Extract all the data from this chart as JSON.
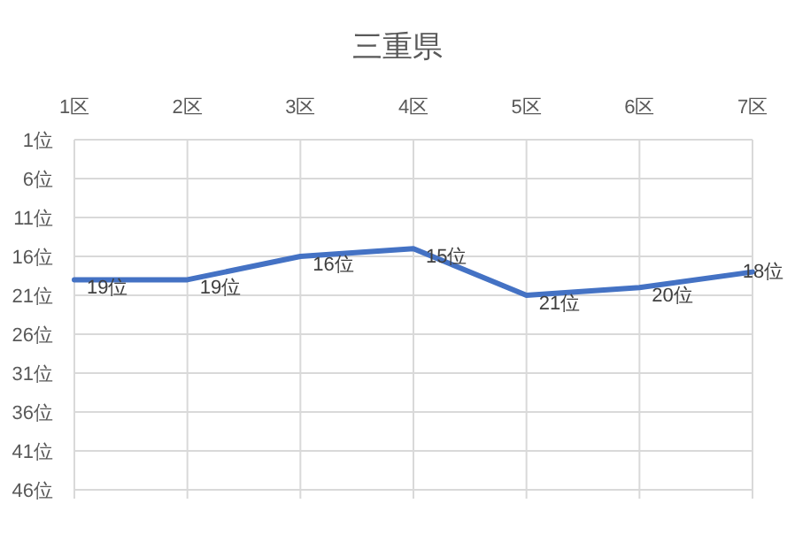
{
  "chart_data": {
    "type": "line",
    "title": "三重県",
    "categories": [
      "1区",
      "2区",
      "3区",
      "4区",
      "5区",
      "6区",
      "7区"
    ],
    "series": [
      {
        "color": "#4472c4",
        "values": [
          19,
          19,
          16,
          15,
          21,
          20,
          18
        ],
        "value_labels": [
          "19位",
          "19位",
          "16位",
          "15位",
          "21位",
          "20位",
          "18位"
        ]
      }
    ],
    "ylim": [
      46,
      1
    ],
    "yticks": [
      {
        "value": 1,
        "label": "1位"
      },
      {
        "value": 6,
        "label": "6位"
      },
      {
        "value": 11,
        "label": "11位"
      },
      {
        "value": 16,
        "label": "16位"
      },
      {
        "value": 21,
        "label": "21位"
      },
      {
        "value": 26,
        "label": "26位"
      },
      {
        "value": 31,
        "label": "31位"
      },
      {
        "value": 36,
        "label": "36位"
      },
      {
        "value": 41,
        "label": "41位"
      },
      {
        "value": 46,
        "label": "46位"
      }
    ],
    "grid": true,
    "marker": "none",
    "line_style": "solid"
  }
}
